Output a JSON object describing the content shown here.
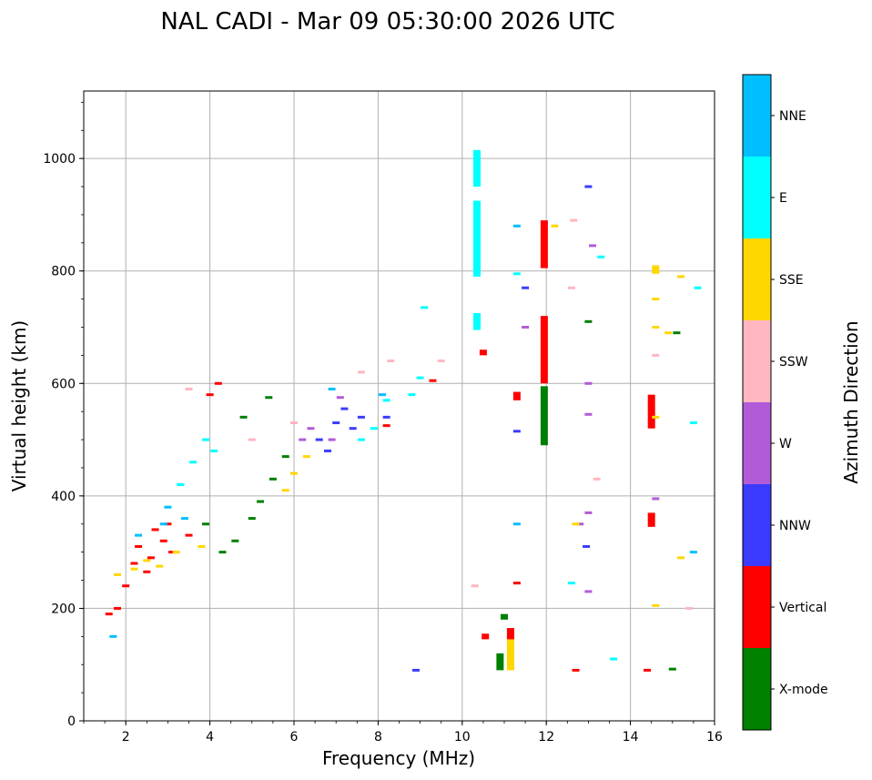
{
  "chart_data": {
    "type": "scatter",
    "title": "NAL CADI - Mar 09 05:30:00 2026 UTC",
    "xlabel": "Frequency (MHz)",
    "ylabel": "Virtual height (km)",
    "xlim": [
      1,
      16
    ],
    "ylim": [
      0,
      1120
    ],
    "xticks": [
      "2",
      "4",
      "6",
      "8",
      "10",
      "12",
      "14",
      "16"
    ],
    "yticks": [
      "0",
      "200",
      "400",
      "600",
      "800",
      "1000"
    ],
    "grid": true,
    "colorbar": {
      "label": "Azimuth Direction",
      "categories": [
        {
          "name": "X-mode",
          "color": "#008000"
        },
        {
          "name": "Vertical",
          "color": "#ff0000"
        },
        {
          "name": "NNW",
          "color": "#3b3bff"
        },
        {
          "name": "W",
          "color": "#b25bd8"
        },
        {
          "name": "SSW",
          "color": "#ffb6c1"
        },
        {
          "name": "SSE",
          "color": "#ffd700"
        },
        {
          "name": "E",
          "color": "#00ffff"
        },
        {
          "name": "NNE",
          "color": "#00bfff"
        }
      ]
    },
    "series": [
      {
        "name": "Vertical",
        "segments": [
          {
            "x": 11.95,
            "y0": 805,
            "y1": 890
          },
          {
            "x": 11.95,
            "y0": 600,
            "y1": 720
          },
          {
            "x": 10.5,
            "y0": 650,
            "y1": 660
          },
          {
            "x": 11.3,
            "y0": 570,
            "y1": 585
          },
          {
            "x": 14.5,
            "y0": 520,
            "y1": 580
          },
          {
            "x": 14.5,
            "y0": 345,
            "y1": 370
          },
          {
            "x": 10.55,
            "y0": 145,
            "y1": 155
          },
          {
            "x": 11.15,
            "y0": 140,
            "y1": 165
          }
        ],
        "points": [
          [
            2.0,
            240
          ],
          [
            2.3,
            310
          ],
          [
            2.6,
            290
          ],
          [
            2.9,
            320
          ],
          [
            3.1,
            300
          ],
          [
            3.5,
            330
          ],
          [
            4.0,
            580
          ],
          [
            4.2,
            600
          ],
          [
            1.6,
            190
          ],
          [
            1.8,
            200
          ],
          [
            2.2,
            280
          ],
          [
            2.5,
            265
          ],
          [
            2.7,
            340
          ],
          [
            3.0,
            350
          ],
          [
            8.2,
            525
          ],
          [
            9.3,
            605
          ],
          [
            11.3,
            245
          ],
          [
            12.7,
            90
          ],
          [
            14.4,
            90
          ]
        ]
      },
      {
        "name": "X-mode",
        "segments": [
          {
            "x": 11.95,
            "y0": 490,
            "y1": 595
          },
          {
            "x": 10.9,
            "y0": 90,
            "y1": 120
          },
          {
            "x": 11.0,
            "y0": 180,
            "y1": 190
          }
        ],
        "points": [
          [
            4.3,
            300
          ],
          [
            4.6,
            320
          ],
          [
            5.0,
            360
          ],
          [
            5.2,
            390
          ],
          [
            5.5,
            430
          ],
          [
            5.8,
            470
          ],
          [
            4.8,
            540
          ],
          [
            5.4,
            575
          ],
          [
            3.9,
            350
          ],
          [
            15.0,
            92
          ],
          [
            15.1,
            690
          ],
          [
            13.0,
            710
          ]
        ]
      },
      {
        "name": "NNW",
        "segments": [],
        "points": [
          [
            6.6,
            500
          ],
          [
            7.0,
            530
          ],
          [
            7.2,
            555
          ],
          [
            7.4,
            520
          ],
          [
            7.6,
            540
          ],
          [
            6.8,
            480
          ],
          [
            11.5,
            770
          ],
          [
            13.0,
            950
          ],
          [
            12.95,
            310
          ],
          [
            8.2,
            540
          ],
          [
            8.9,
            90
          ],
          [
            11.3,
            515
          ]
        ]
      },
      {
        "name": "W",
        "segments": [],
        "points": [
          [
            6.2,
            500
          ],
          [
            6.4,
            520
          ],
          [
            6.9,
            500
          ],
          [
            7.1,
            575
          ],
          [
            13.0,
            600
          ],
          [
            13.0,
            545
          ],
          [
            13.0,
            370
          ],
          [
            12.8,
            350
          ],
          [
            13.0,
            230
          ],
          [
            14.6,
            395
          ],
          [
            11.5,
            700
          ],
          [
            13.1,
            845
          ]
        ]
      },
      {
        "name": "SSW",
        "segments": [],
        "points": [
          [
            3.5,
            590
          ],
          [
            5.0,
            500
          ],
          [
            6.0,
            530
          ],
          [
            7.6,
            620
          ],
          [
            8.3,
            640
          ],
          [
            9.5,
            640
          ],
          [
            12.6,
            770
          ],
          [
            12.65,
            890
          ],
          [
            14.6,
            650
          ],
          [
            10.3,
            240
          ],
          [
            15.4,
            200
          ],
          [
            13.2,
            430
          ]
        ]
      },
      {
        "name": "SSE",
        "segments": [
          {
            "x": 11.15,
            "y0": 90,
            "y1": 145
          },
          {
            "x": 14.6,
            "y0": 795,
            "y1": 810
          }
        ],
        "points": [
          [
            1.8,
            260
          ],
          [
            2.2,
            270
          ],
          [
            2.5,
            285
          ],
          [
            2.8,
            275
          ],
          [
            3.2,
            300
          ],
          [
            3.8,
            310
          ],
          [
            5.8,
            410
          ],
          [
            6.0,
            440
          ],
          [
            6.3,
            470
          ],
          [
            14.6,
            750
          ],
          [
            14.6,
            700
          ],
          [
            15.2,
            790
          ],
          [
            14.9,
            690
          ],
          [
            14.6,
            205
          ],
          [
            15.2,
            290
          ],
          [
            12.2,
            880
          ],
          [
            12.7,
            350
          ],
          [
            14.6,
            540
          ]
        ]
      },
      {
        "name": "E",
        "segments": [
          {
            "x": 10.35,
            "y0": 950,
            "y1": 1015
          },
          {
            "x": 10.35,
            "y0": 790,
            "y1": 925
          },
          {
            "x": 10.35,
            "y0": 695,
            "y1": 725
          }
        ],
        "points": [
          [
            3.3,
            420
          ],
          [
            3.6,
            460
          ],
          [
            3.9,
            500
          ],
          [
            4.1,
            480
          ],
          [
            7.6,
            500
          ],
          [
            7.9,
            520
          ],
          [
            8.2,
            570
          ],
          [
            8.8,
            580
          ],
          [
            9.0,
            610
          ],
          [
            9.1,
            735
          ],
          [
            11.3,
            795
          ],
          [
            13.3,
            825
          ],
          [
            15.5,
            530
          ],
          [
            15.6,
            770
          ],
          [
            13.6,
            110
          ],
          [
            12.6,
            245
          ]
        ]
      },
      {
        "name": "NNE",
        "segments": [],
        "points": [
          [
            3.0,
            380
          ],
          [
            3.4,
            360
          ],
          [
            2.9,
            350
          ],
          [
            2.3,
            330
          ],
          [
            1.7,
            150
          ],
          [
            6.9,
            590
          ],
          [
            11.3,
            880
          ],
          [
            8.1,
            580
          ],
          [
            11.3,
            350
          ],
          [
            15.5,
            300
          ]
        ]
      }
    ]
  }
}
